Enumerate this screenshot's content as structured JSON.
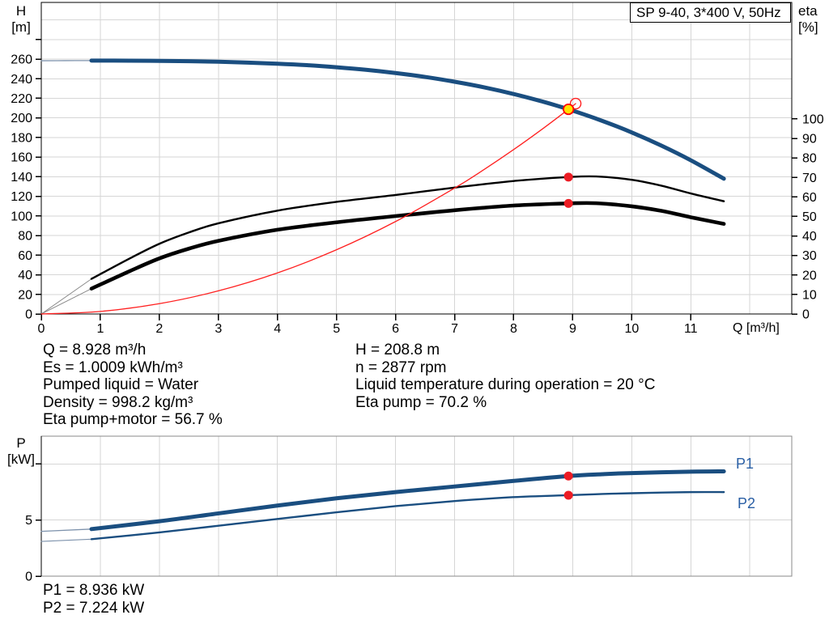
{
  "title_box": {
    "label": "SP 9-40, 3*400 V, 50Hz"
  },
  "info_left": {
    "lines": [
      "Q = 8.928 m³/h",
      "Es = 1.0009 kWh/m³",
      "Pumped liquid = Water",
      "Density = 998.2 kg/m³",
      "Eta pump+motor = 56.7 %"
    ]
  },
  "info_right": {
    "lines": [
      "H = 208.8 m",
      "n = 2877 rpm",
      "Liquid temperature during operation = 20 °C",
      "Eta pump = 70.2 %"
    ]
  },
  "info_power": {
    "lines": [
      "P1 = 8.936 kW",
      "P2 = 7.224 kW"
    ]
  },
  "colors": {
    "curve_blue": "#1A4E80",
    "thin_blue": "#7D92AC",
    "curve_black": "#000000",
    "thin_gray": "#8A8A8A",
    "curve_red": "#FF2020",
    "dot_red": "#EC1C24",
    "dot_yellow": "#FFE000",
    "grid": "#D6D6D6",
    "frame": "#000000",
    "frame_light": "#888888",
    "series_label_blue": "#2A5FA5"
  },
  "operating_point": {
    "Q": 8.928,
    "H": 208.8,
    "eta_pump": 70.2,
    "eta_pump_motor": 56.7,
    "P1": 8.936,
    "P2": 7.224
  },
  "chart_data": [
    {
      "type": "line",
      "title": "SP 9-40, 3*400 V, 50Hz",
      "xlabel": "Q [m³/h]",
      "ylabel_left": "H [m]",
      "ylabel_left_lines": [
        "H",
        "[m]"
      ],
      "ylabel_right": "eta [%]",
      "ylabel_right_lines": [
        "eta",
        "[%]"
      ],
      "x_range": [
        0,
        12.71
      ],
      "y_left_range": [
        0,
        317.8
      ],
      "y_right_range": [
        0,
        159.75
      ],
      "x_ticks": [
        0,
        1,
        2,
        3,
        4,
        5,
        6,
        7,
        8,
        9,
        10,
        11
      ],
      "x_grid": [
        1,
        2,
        3,
        4,
        5,
        6,
        7,
        8,
        9,
        10,
        11,
        12
      ],
      "y_left_ticks": [
        0,
        20,
        40,
        60,
        80,
        100,
        120,
        140,
        160,
        180,
        200,
        220,
        240,
        260,
        280
      ],
      "y_left_labeled": [
        0,
        20,
        40,
        60,
        80,
        100,
        120,
        140,
        160,
        180,
        200,
        220,
        240,
        260
      ],
      "y_left_grid": [
        20,
        40,
        60,
        80,
        100,
        120,
        140,
        160,
        180,
        200,
        220,
        240,
        260,
        280,
        300
      ],
      "y_right_ticks": [
        0,
        10,
        20,
        30,
        40,
        50,
        60,
        70,
        80,
        90,
        100
      ],
      "y_right_grid": [],
      "series": [
        {
          "name": "H pump curve",
          "axis": "left",
          "color": "#1A4E80",
          "width": 5,
          "thin_until": 0.85,
          "thin_width": 1.3,
          "thin_color": "#7D92AC",
          "points": [
            [
              0,
              258.3
            ],
            [
              0.4,
              258.4
            ],
            [
              0.85,
              258.5
            ],
            [
              1.5,
              258.4
            ],
            [
              2,
              258.2
            ],
            [
              2.5,
              257.8
            ],
            [
              3,
              257.3
            ],
            [
              3.5,
              256.4
            ],
            [
              4,
              255.3
            ],
            [
              4.5,
              253.8
            ],
            [
              5,
              251.7
            ],
            [
              5.5,
              249.1
            ],
            [
              6,
              245.8
            ],
            [
              6.5,
              241.8
            ],
            [
              7,
              236.9
            ],
            [
              7.5,
              231.2
            ],
            [
              8,
              224.4
            ],
            [
              8.5,
              216.5
            ],
            [
              8.928,
              208.8
            ],
            [
              9.5,
              197.0
            ],
            [
              10,
              185.2
            ],
            [
              10.5,
              171.8
            ],
            [
              11,
              156.8
            ],
            [
              11.56,
              138.0
            ]
          ]
        },
        {
          "name": "Eta pump",
          "axis": "right",
          "color": "#000000",
          "width": 2.4,
          "thin_until": 0.85,
          "thin_width": 1,
          "thin_color": "#8A8A8A",
          "points": [
            [
              0,
              0
            ],
            [
              0.85,
              18
            ],
            [
              1.5,
              28.5
            ],
            [
              2,
              36
            ],
            [
              2.5,
              41.8
            ],
            [
              3,
              46.5
            ],
            [
              4,
              53
            ],
            [
              5,
              57.5
            ],
            [
              6,
              61
            ],
            [
              7,
              64.8
            ],
            [
              8,
              68.2
            ],
            [
              8.928,
              70.2
            ],
            [
              9.4,
              70.5
            ],
            [
              10,
              68.8
            ],
            [
              10.5,
              65.8
            ],
            [
              11,
              61.8
            ],
            [
              11.56,
              57.8
            ]
          ]
        },
        {
          "name": "Eta pump+motor",
          "axis": "right",
          "color": "#000000",
          "width": 4.6,
          "thin_until": 0.85,
          "thin_width": 1,
          "thin_color": "#8A8A8A",
          "points": [
            [
              0,
              0
            ],
            [
              0.85,
              13
            ],
            [
              1.5,
              22
            ],
            [
              2,
              28.5
            ],
            [
              2.5,
              33.5
            ],
            [
              3,
              37.5
            ],
            [
              4,
              43.2
            ],
            [
              5,
              47
            ],
            [
              6,
              50.2
            ],
            [
              7,
              53.2
            ],
            [
              8,
              55.6
            ],
            [
              8.928,
              56.7
            ],
            [
              9.4,
              56.8
            ],
            [
              10,
              55.2
            ],
            [
              10.5,
              52.9
            ],
            [
              11,
              49.6
            ],
            [
              11.56,
              46.2
            ]
          ]
        },
        {
          "name": "Duty parabola",
          "axis": "left",
          "color": "#FF2020",
          "width": 1.3,
          "points": [
            [
              0,
              0
            ],
            [
              1,
              2.6
            ],
            [
              2,
              10.5
            ],
            [
              3,
              23.6
            ],
            [
              4,
              41.9
            ],
            [
              5,
              65.5
            ],
            [
              6,
              94.3
            ],
            [
              7,
              128.4
            ],
            [
              7.5,
              147.4
            ],
            [
              8,
              167.7
            ],
            [
              8.5,
              189.3
            ],
            [
              8.928,
              208.8
            ],
            [
              9.05,
              214.6
            ]
          ]
        }
      ],
      "markers": [
        {
          "name": "duty-parabola-end-ring",
          "x": 9.05,
          "y": 214.6,
          "axis": "left",
          "r": 6.5,
          "fill": "none",
          "stroke": "#FF2020",
          "stroke_width": 1.4
        },
        {
          "name": "duty-point-marker",
          "x": 8.928,
          "y": 208.8,
          "axis": "left",
          "r": 6.2,
          "fill": "#FFE000",
          "stroke": "#FF0000",
          "stroke_width": 1.8,
          "interactable": true
        },
        {
          "name": "eta-pump-marker",
          "x": 8.928,
          "y": 70.2,
          "axis": "right",
          "r": 5.5,
          "fill": "#EC1C24",
          "stroke": "none",
          "stroke_width": 0
        },
        {
          "name": "eta-pump-motor-marker",
          "x": 8.928,
          "y": 56.7,
          "axis": "right",
          "r": 5.5,
          "fill": "#EC1C24",
          "stroke": "none",
          "stroke_width": 0
        }
      ]
    },
    {
      "type": "line",
      "title": "",
      "xlabel": "",
      "ylabel_left": "P [kW]",
      "ylabel_left_lines": [
        "P",
        "[kW]"
      ],
      "x_range": [
        0,
        12.71
      ],
      "y_left_range": [
        0,
        12.49
      ],
      "x_ticks": [],
      "x_grid": [
        1,
        2,
        3,
        4,
        5,
        6,
        7,
        8,
        9,
        10,
        11,
        12
      ],
      "y_left_ticks": [
        0,
        5,
        10
      ],
      "y_left_labeled": [
        0,
        5
      ],
      "y_left_grid": [
        5,
        10
      ],
      "series": [
        {
          "name": "P1",
          "axis": "left",
          "color": "#1A4E80",
          "width": 5,
          "thin_until": 0.85,
          "thin_width": 1.3,
          "thin_color": "#7D92AC",
          "points": [
            [
              0,
              4.0
            ],
            [
              0.85,
              4.2
            ],
            [
              2,
              4.9
            ],
            [
              3,
              5.6
            ],
            [
              4,
              6.3
            ],
            [
              5,
              6.95
            ],
            [
              6,
              7.5
            ],
            [
              7,
              8.0
            ],
            [
              8,
              8.5
            ],
            [
              8.928,
              8.936
            ],
            [
              9.5,
              9.1
            ],
            [
              10,
              9.2
            ],
            [
              11,
              9.32
            ],
            [
              11.56,
              9.35
            ]
          ]
        },
        {
          "name": "P2",
          "axis": "left",
          "color": "#1A4E80",
          "width": 2.4,
          "thin_until": 0.85,
          "thin_width": 1.1,
          "thin_color": "#7D92AC",
          "points": [
            [
              0,
              3.1
            ],
            [
              0.85,
              3.3
            ],
            [
              2,
              3.9
            ],
            [
              3,
              4.5
            ],
            [
              4,
              5.1
            ],
            [
              5,
              5.7
            ],
            [
              6,
              6.25
            ],
            [
              7,
              6.7
            ],
            [
              8,
              7.05
            ],
            [
              8.928,
              7.224
            ],
            [
              9.5,
              7.33
            ],
            [
              10,
              7.4
            ],
            [
              11,
              7.5
            ],
            [
              11.56,
              7.5
            ]
          ]
        }
      ],
      "markers": [
        {
          "name": "p1-marker",
          "x": 8.928,
          "y": 8.936,
          "axis": "left",
          "r": 5.5,
          "fill": "#EC1C24",
          "stroke": "none",
          "stroke_width": 0
        },
        {
          "name": "p2-marker",
          "x": 8.928,
          "y": 7.224,
          "axis": "left",
          "r": 5.5,
          "fill": "#EC1C24",
          "stroke": "none",
          "stroke_width": 0
        }
      ]
    }
  ]
}
